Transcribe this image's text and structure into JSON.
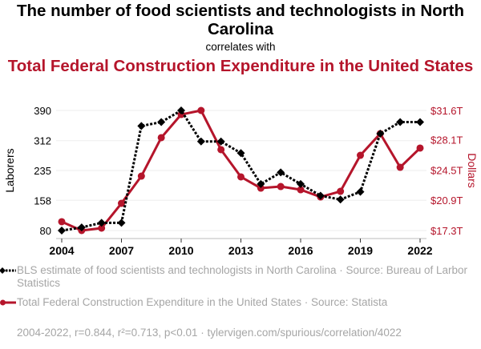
{
  "header": {
    "title": "The number of food scientists and technologists in North Carolina",
    "connector": "correlates with",
    "subtitle": "Total Federal Construction Expenditure in the United States"
  },
  "colors": {
    "series1": "#000000",
    "series2": "#b5152b",
    "muted_text": "#a6a6a6",
    "grid": "#eeeeee",
    "axis": "#bbbbbb"
  },
  "legend": {
    "items": [
      {
        "text": "BLS estimate of food scientists and technologists in North Carolina · Source: Bureau of Larbor Statistics"
      },
      {
        "text": "Total Federal Construction Expenditure in the United States · Source: Statista"
      }
    ]
  },
  "footer": {
    "text": "2004-2022, r=0.844, r²=0.713, p<0.01 · tylervigen.com/spurious/correlation/4022"
  },
  "chart_data": {
    "type": "line",
    "title": "The number of food scientists and technologists in North Carolina correlates with Total Federal Construction Expenditure in the United States",
    "x": [
      2004,
      2005,
      2006,
      2007,
      2008,
      2009,
      2010,
      2011,
      2012,
      2013,
      2014,
      2015,
      2016,
      2017,
      2018,
      2019,
      2020,
      2021,
      2022
    ],
    "xlim": [
      2004,
      2022
    ],
    "xticks": [
      2004,
      2007,
      2010,
      2013,
      2016,
      2019,
      2022
    ],
    "xtick_labels": [
      "2004",
      "2007",
      "2010",
      "2013",
      "2016",
      "2019",
      "2022"
    ],
    "ylabel_left": "Laborers",
    "ylabel_right": "Dollars",
    "ylim_left": [
      80,
      390
    ],
    "yticks_left": [
      80,
      158,
      235,
      312,
      390
    ],
    "ytick_labels_left": [
      "80",
      "158",
      "235",
      "312",
      "390"
    ],
    "ylim_right": [
      17.3,
      31.6
    ],
    "yticks_right": [
      17.3,
      20.9,
      24.5,
      28.1,
      31.6
    ],
    "ytick_labels_right": [
      "$17.3T",
      "$20.9T",
      "$24.5T",
      "$28.1T",
      "$31.6T"
    ],
    "grid": true,
    "legend_position": "bottom",
    "series": [
      {
        "name": "BLS estimate of food scientists and technologists in North Carolina",
        "axis": "left",
        "style": "dotted-diamond",
        "values": [
          80,
          88,
          100,
          100,
          350,
          360,
          390,
          310,
          310,
          280,
          200,
          230,
          200,
          170,
          160,
          180,
          330,
          360,
          360
        ]
      },
      {
        "name": "Total Federal Construction Expenditure in the United States",
        "axis": "right",
        "style": "solid-circle",
        "unit": "trillion USD",
        "values": [
          18.35,
          17.3,
          17.59,
          20.54,
          23.78,
          28.36,
          31.12,
          31.6,
          26.93,
          23.69,
          22.35,
          22.54,
          22.16,
          21.3,
          21.97,
          26.26,
          28.84,
          24.83,
          27.12
        ]
      }
    ]
  }
}
